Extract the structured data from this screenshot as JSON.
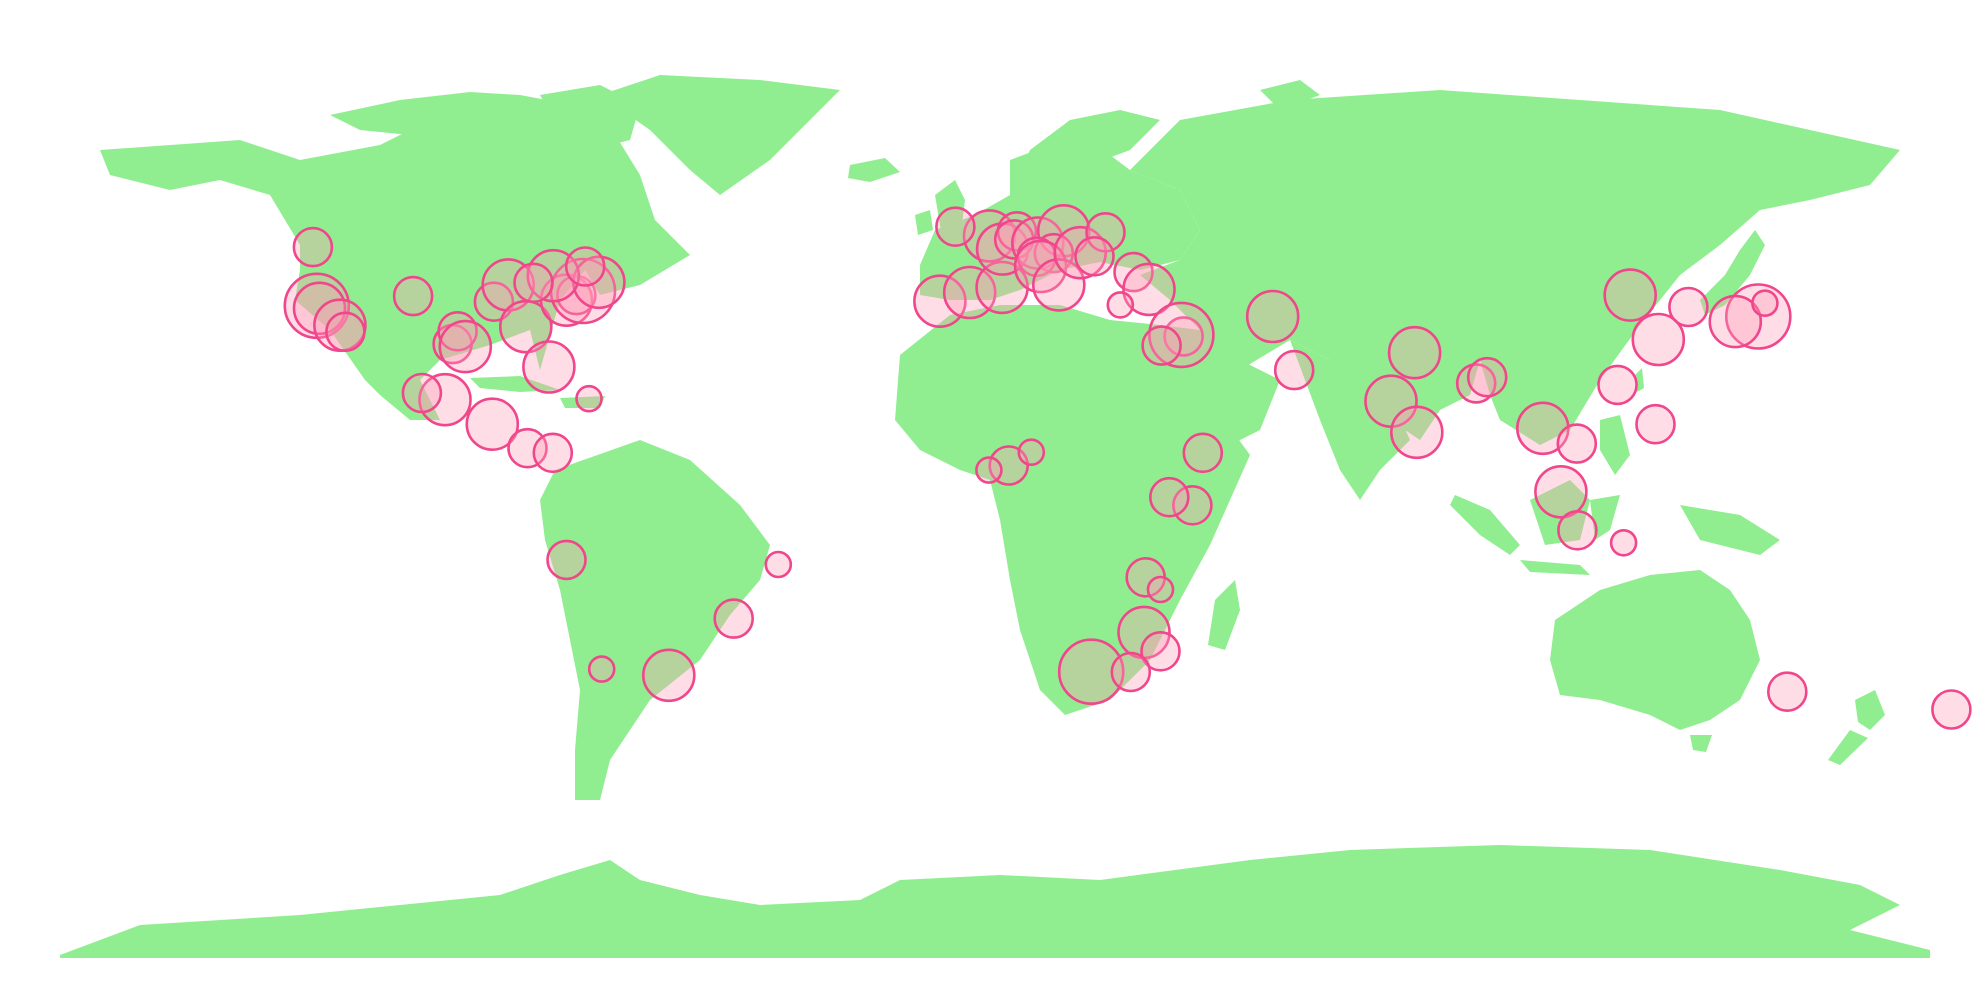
{
  "map": {
    "land_color": "#90ee90",
    "bubble_fill": "#ff9eb8",
    "bubble_stroke": "#f0468c",
    "background": "#ffffff"
  },
  "chart_data": {
    "type": "scatter",
    "projection": "equirectangular",
    "title": "",
    "xlabel": "",
    "ylabel": "",
    "xlim": [
      -180,
      180
    ],
    "ylim": [
      -90,
      84
    ],
    "legend": "none",
    "points_format": [
      "lon",
      "lat",
      "size"
    ],
    "points": [
      [
        -122.4,
        37.8,
        4
      ],
      [
        -121.9,
        37.3,
        3
      ],
      [
        -118.2,
        34.0,
        3
      ],
      [
        -117.2,
        32.7,
        2
      ],
      [
        -123.1,
        49.3,
        2
      ],
      [
        -104.9,
        39.7,
        2
      ],
      [
        -97.7,
        30.3,
        2
      ],
      [
        -96.8,
        32.8,
        2
      ],
      [
        -95.4,
        29.8,
        3
      ],
      [
        -90.2,
        38.6,
        2
      ],
      [
        -87.6,
        41.9,
        3
      ],
      [
        -84.4,
        33.7,
        3
      ],
      [
        -80.2,
        25.8,
        3
      ],
      [
        -77.0,
        38.9,
        3
      ],
      [
        -75.2,
        39.9,
        2
      ],
      [
        -74.0,
        40.7,
        4
      ],
      [
        -71.1,
        42.4,
        3
      ],
      [
        -79.4,
        43.7,
        3
      ],
      [
        -73.6,
        45.5,
        2
      ],
      [
        -83.0,
        42.3,
        2
      ],
      [
        -99.1,
        19.4,
        3
      ],
      [
        -103.3,
        20.7,
        2
      ],
      [
        -90.5,
        14.6,
        3
      ],
      [
        -84.1,
        9.9,
        2
      ],
      [
        -79.5,
        9.0,
        2
      ],
      [
        -77.0,
        -12.0,
        2
      ],
      [
        -70.6,
        -33.4,
        1
      ],
      [
        -58.4,
        -34.6,
        3
      ],
      [
        -46.6,
        -23.5,
        2
      ],
      [
        -38.5,
        -12.9,
        1
      ],
      [
        -9.1,
        38.7,
        3
      ],
      [
        -3.7,
        40.4,
        3
      ],
      [
        2.2,
        41.4,
        3
      ],
      [
        -0.1,
        51.5,
        3
      ],
      [
        -6.3,
        53.3,
        2
      ],
      [
        2.3,
        48.9,
        3
      ],
      [
        4.9,
        52.4,
        2
      ],
      [
        4.4,
        50.8,
        2
      ],
      [
        8.7,
        50.1,
        3
      ],
      [
        13.4,
        52.5,
        3
      ],
      [
        11.6,
        48.1,
        2
      ],
      [
        8.5,
        47.4,
        2
      ],
      [
        9.2,
        45.5,
        3
      ],
      [
        12.5,
        41.9,
        3
      ],
      [
        16.4,
        48.2,
        3
      ],
      [
        21.0,
        52.2,
        2
      ],
      [
        19.0,
        47.5,
        2
      ],
      [
        26.1,
        44.4,
        2
      ],
      [
        28.9,
        41.0,
        3
      ],
      [
        23.7,
        37.98,
        1
      ],
      [
        35.2,
        31.8,
        2
      ],
      [
        34.8,
        32.1,
        4
      ],
      [
        31.2,
        30.0,
        2
      ],
      [
        51.4,
        35.7,
        3
      ],
      [
        55.3,
        25.2,
        2
      ],
      [
        77.2,
        28.6,
        3
      ],
      [
        72.9,
        19.1,
        3
      ],
      [
        77.6,
        13.0,
        3
      ],
      [
        88.4,
        22.6,
        2
      ],
      [
        90.4,
        23.8,
        2
      ],
      [
        100.5,
        13.8,
        3
      ],
      [
        106.7,
        10.8,
        2
      ],
      [
        103.8,
        1.35,
        3
      ],
      [
        106.8,
        -6.2,
        2
      ],
      [
        115.2,
        -8.65,
        1
      ],
      [
        121.0,
        14.6,
        2
      ],
      [
        114.1,
        22.3,
        2
      ],
      [
        121.5,
        31.2,
        3
      ],
      [
        116.4,
        39.9,
        3
      ],
      [
        126.98,
        37.57,
        2
      ],
      [
        139.7,
        35.7,
        4
      ],
      [
        135.5,
        34.7,
        3
      ],
      [
        140.9,
        38.3,
        1
      ],
      [
        144.96,
        -37.81,
        2
      ],
      [
        174.8,
        -41.3,
        2
      ],
      [
        3.4,
        6.5,
        2
      ],
      [
        -0.2,
        5.6,
        1
      ],
      [
        7.5,
        9.1,
        1
      ],
      [
        36.8,
        -1.3,
        2
      ],
      [
        32.6,
        0.3,
        2
      ],
      [
        38.7,
        9.0,
        2
      ],
      [
        28.0,
        -26.2,
        3
      ],
      [
        31.0,
        -29.9,
        2
      ],
      [
        18.4,
        -33.9,
        4
      ],
      [
        25.6,
        -33.96,
        2
      ],
      [
        28.3,
        -15.4,
        2
      ],
      [
        31.0,
        -17.8,
        1
      ],
      [
        -72.9,
        19.6,
        1
      ]
    ]
  }
}
